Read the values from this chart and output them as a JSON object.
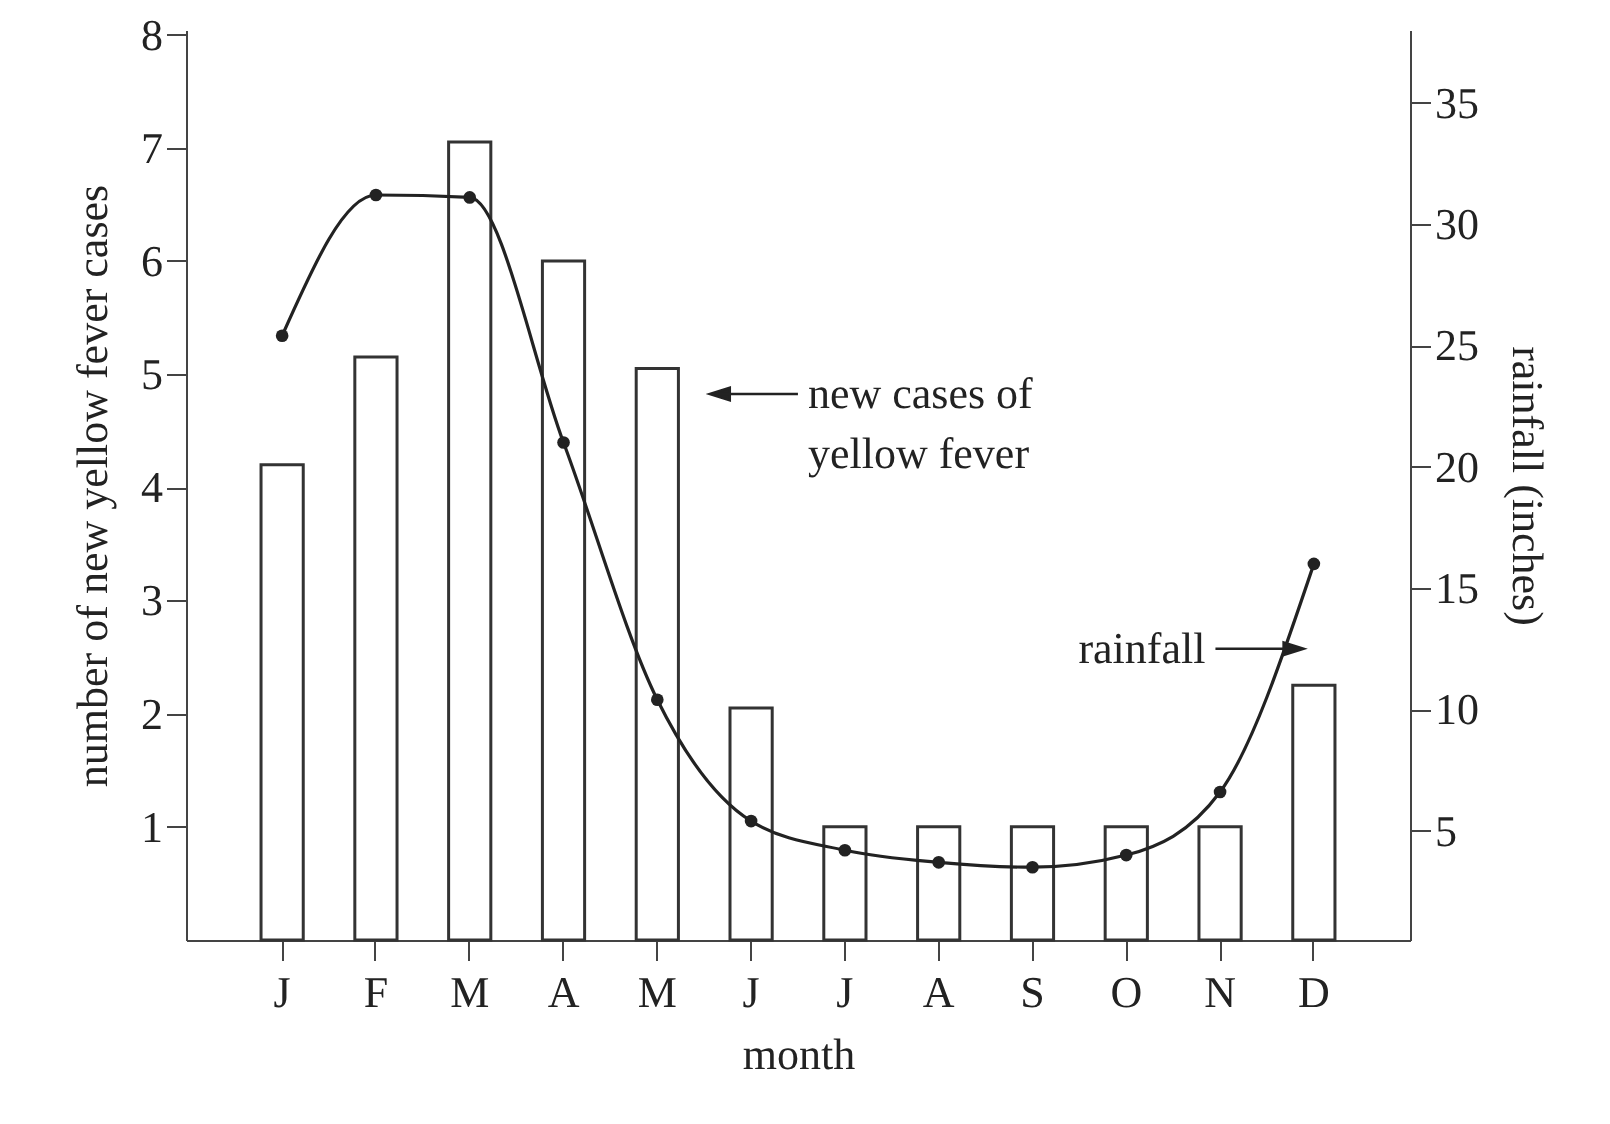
{
  "chart_data": {
    "type": "bar",
    "xlabel": "month",
    "ylabel": "number of new yellow fever cases",
    "y2label": "rainfall (inches)",
    "categories": [
      "J",
      "F",
      "M",
      "A",
      "M",
      "J",
      "J",
      "A",
      "S",
      "O",
      "N",
      "D"
    ],
    "series": [
      {
        "color": "#ffffff",
        "values": [
          4.2,
          5.15,
          7.05,
          6,
          5.05,
          2.05,
          1,
          1,
          1,
          1,
          1,
          2.25
        ]
      },
      {
        "type": "line",
        "axis": "y2",
        "color": "#222222",
        "marker": "circle",
        "values": [
          25.4,
          31.2,
          31.1,
          21,
          10.4,
          5.4,
          4.2,
          3.7,
          3.5,
          4,
          6.6,
          16
        ]
      }
    ],
    "ylim": [
      0,
      8.04
    ],
    "yticks": [
      1,
      2,
      3,
      4,
      5,
      6,
      7,
      8
    ],
    "y2lim": [
      0.5,
      38
    ],
    "y2ticks": [
      5,
      10,
      15,
      20,
      25,
      30,
      35
    ],
    "annotations": [
      "new cases of\nyellow fever",
      "rainfall"
    ]
  }
}
